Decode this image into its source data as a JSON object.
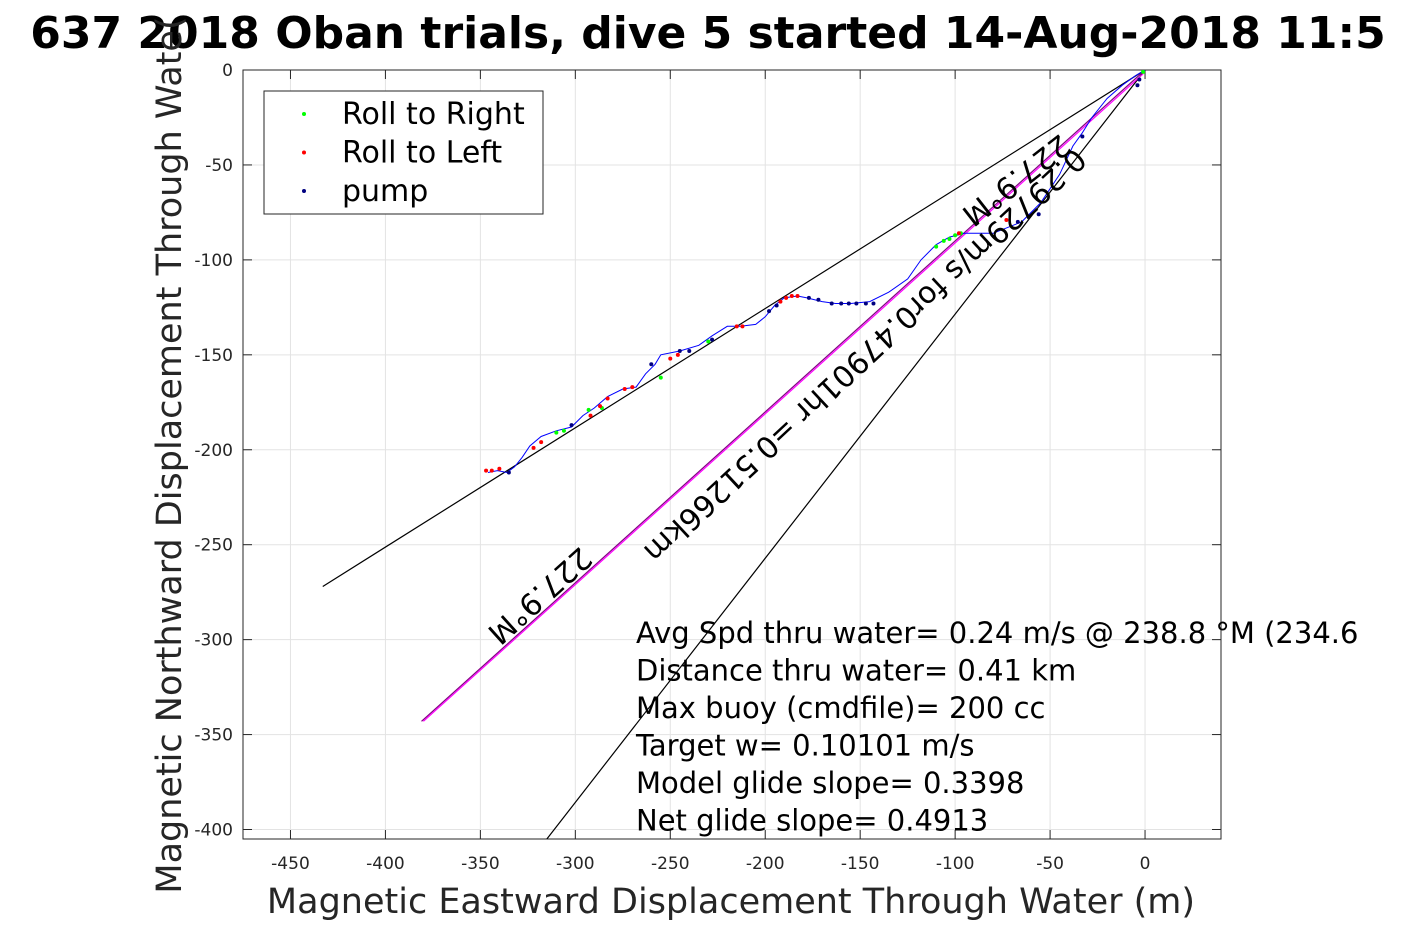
{
  "chart_data": {
    "type": "scatter",
    "title": "637 2018 Oban trials, dive 5 started 14-Aug-2018 11:5",
    "xlabel": "Magnetic Eastward Displacement Through Water (m)",
    "ylabel": "Magnetic Northward Displacement Through Wate(",
    "xlim": [
      -475,
      40
    ],
    "ylim": [
      -405,
      0
    ],
    "xticks": [
      -450,
      -400,
      -350,
      -300,
      -250,
      -200,
      -150,
      -100,
      -50,
      0
    ],
    "yticks": [
      0,
      -50,
      -100,
      -150,
      -200,
      -250,
      -300,
      -350,
      -400
    ],
    "grid": true,
    "legend_position": "top-left",
    "legend": [
      {
        "label": "Roll to Right",
        "color": "#00ff00"
      },
      {
        "label": "Roll to Left",
        "color": "#ff0000"
      },
      {
        "label": "pump",
        "color": "#000080"
      }
    ],
    "track": {
      "color": "#0000ff",
      "points": [
        [
          0,
          0
        ],
        [
          -5,
          -3
        ],
        [
          -12,
          -8
        ],
        [
          -20,
          -15
        ],
        [
          -28,
          -25
        ],
        [
          -33,
          -33
        ],
        [
          -38,
          -40
        ],
        [
          -45,
          -55
        ],
        [
          -55,
          -70
        ],
        [
          -65,
          -80
        ],
        [
          -80,
          -86
        ],
        [
          -95,
          -86
        ],
        [
          -103,
          -88
        ],
        [
          -110,
          -92
        ],
        [
          -118,
          -100
        ],
        [
          -125,
          -110
        ],
        [
          -135,
          -117
        ],
        [
          -145,
          -122
        ],
        [
          -155,
          -123
        ],
        [
          -163,
          -123
        ],
        [
          -170,
          -122
        ],
        [
          -178,
          -120
        ],
        [
          -183,
          -119
        ],
        [
          -190,
          -120
        ],
        [
          -195,
          -124
        ],
        [
          -200,
          -130
        ],
        [
          -205,
          -134
        ],
        [
          -213,
          -135
        ],
        [
          -220,
          -135
        ],
        [
          -228,
          -140
        ],
        [
          -235,
          -145
        ],
        [
          -245,
          -148
        ],
        [
          -255,
          -150
        ],
        [
          -258,
          -155
        ],
        [
          -263,
          -160
        ],
        [
          -268,
          -167
        ],
        [
          -275,
          -168
        ],
        [
          -283,
          -172
        ],
        [
          -290,
          -178
        ],
        [
          -296,
          -182
        ],
        [
          -302,
          -188
        ],
        [
          -310,
          -190
        ],
        [
          -318,
          -193
        ],
        [
          -324,
          -198
        ],
        [
          -328,
          -204
        ],
        [
          -332,
          -209
        ],
        [
          -336,
          -212
        ],
        [
          -341,
          -211
        ],
        [
          -346,
          -212
        ]
      ]
    },
    "roll_right": [
      [
        -1,
        -1
      ],
      [
        -97,
        -86
      ],
      [
        -100,
        -87
      ],
      [
        -103,
        -89
      ],
      [
        -106,
        -90
      ],
      [
        -110,
        -93
      ],
      [
        -230,
        -143
      ],
      [
        -255,
        -162
      ],
      [
        -286,
        -178
      ],
      [
        -293,
        -179
      ],
      [
        -306,
        -190
      ],
      [
        -310,
        -191
      ]
    ],
    "roll_left": [
      [
        -183,
        -119
      ],
      [
        -186,
        -119
      ],
      [
        -189,
        -120
      ],
      [
        -192,
        -122
      ],
      [
        -212,
        -135
      ],
      [
        -215,
        -135
      ],
      [
        -270,
        -167
      ],
      [
        -274,
        -168
      ],
      [
        -283,
        -173
      ],
      [
        -287,
        -177
      ],
      [
        -292,
        -182
      ],
      [
        -318,
        -196
      ],
      [
        -322,
        -199
      ],
      [
        -340,
        -210
      ],
      [
        -344,
        -211
      ],
      [
        -347,
        -211
      ],
      [
        -98,
        -86
      ],
      [
        -246,
        -150
      ],
      [
        -250,
        -152
      ],
      [
        -73,
        -79
      ]
    ],
    "pump": [
      [
        -3,
        -5
      ],
      [
        -4,
        -8
      ],
      [
        -33,
        -35
      ],
      [
        -143,
        -123
      ],
      [
        -147,
        -123
      ],
      [
        -152,
        -123
      ],
      [
        -156,
        -123
      ],
      [
        -160,
        -123
      ],
      [
        -165,
        -123
      ],
      [
        -172,
        -121
      ],
      [
        -177,
        -120
      ],
      [
        -194,
        -124
      ],
      [
        -198,
        -127
      ],
      [
        -228,
        -142
      ],
      [
        -240,
        -148
      ],
      [
        -245,
        -148
      ],
      [
        -260,
        -155
      ],
      [
        -302,
        -187
      ],
      [
        -335,
        -212
      ],
      [
        -67,
        -80
      ],
      [
        -56,
        -76
      ]
    ],
    "reference_lines": [
      {
        "color": "#000000",
        "from": [
          0,
          0
        ],
        "to": [
          -433,
          -272
        ]
      },
      {
        "color": "#000000",
        "from": [
          0,
          0
        ],
        "to": [
          -315,
          -405
        ]
      },
      {
        "color": "#800080",
        "from": [
          0,
          0
        ],
        "to": [
          -381,
          -343
        ]
      },
      {
        "color": "#ff00ff",
        "from": [
          -1,
          -2
        ],
        "to": [
          -380,
          -343
        ]
      }
    ],
    "annotations": {
      "heading_upper": "227.9°M",
      "heading_lower": "227.9°M",
      "current": "0.29729m/s for0.47901hr =0.51266km"
    },
    "stats": [
      "Avg Spd thru water=  0.24 m/s @ 238.8 °M (234.6",
      "Distance thru water=  0.41 km",
      "Max buoy (cmdfile)= 200 cc",
      "Target w= 0.10101 m/s",
      "Model glide slope= 0.3398",
      "Net glide slope= 0.4913"
    ]
  }
}
